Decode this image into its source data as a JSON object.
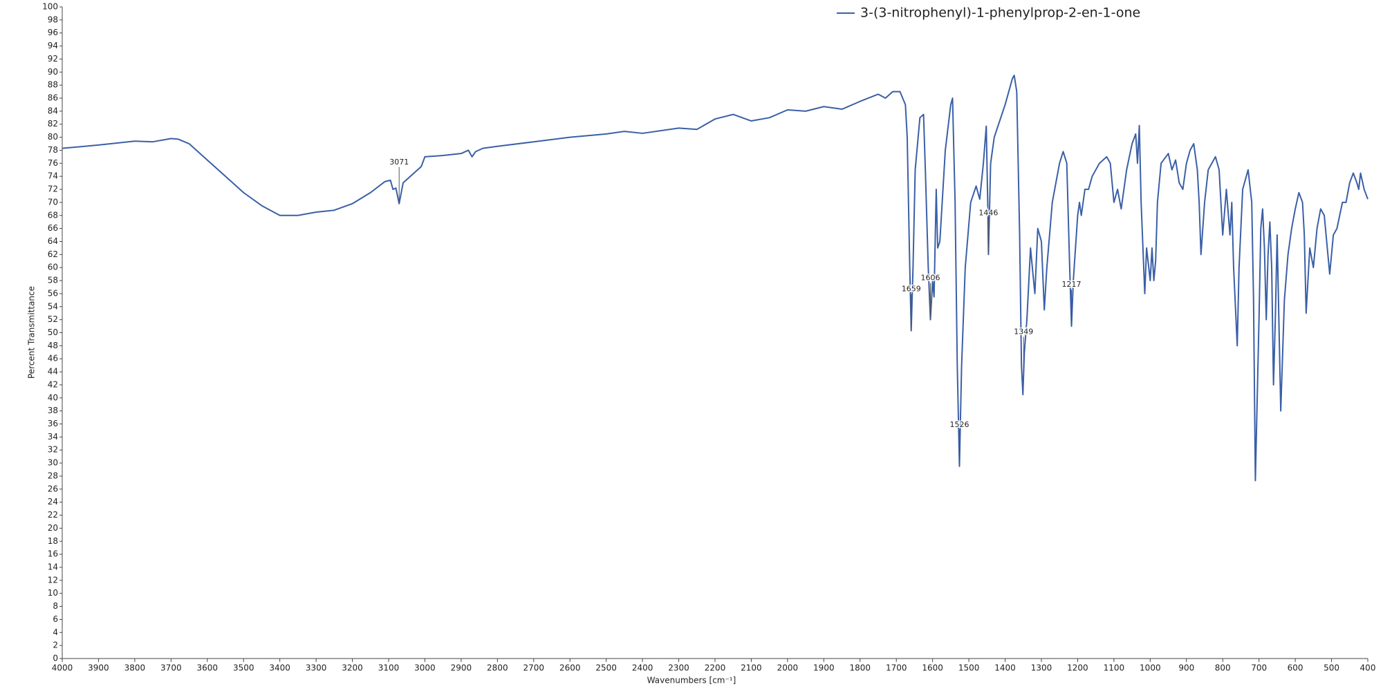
{
  "chart_data": {
    "type": "line",
    "x_label": "Wavenumbers [cm⁻¹]",
    "y_label": "Percent Transmittance",
    "xlim": [
      4000,
      400
    ],
    "ylim": [
      0,
      100
    ],
    "xticks": [
      4000,
      3900,
      3800,
      3700,
      3600,
      3500,
      3400,
      3300,
      3200,
      3100,
      3000,
      2900,
      2800,
      2700,
      2600,
      2500,
      2400,
      2300,
      2200,
      2100,
      2000,
      1900,
      1800,
      1700,
      1600,
      1500,
      1400,
      1300,
      1200,
      1100,
      1000,
      900,
      800,
      700,
      600,
      500,
      400
    ],
    "yticks": [
      0,
      2,
      4,
      6,
      8,
      10,
      12,
      14,
      16,
      18,
      20,
      22,
      24,
      26,
      28,
      30,
      32,
      34,
      36,
      38,
      40,
      42,
      44,
      46,
      48,
      50,
      52,
      54,
      56,
      58,
      60,
      62,
      64,
      66,
      68,
      70,
      72,
      74,
      76,
      78,
      80,
      82,
      84,
      86,
      88,
      90,
      92,
      94,
      96,
      98,
      100
    ],
    "grid": false,
    "legend": "top-right",
    "peak_labels": [
      3071,
      1659,
      1606,
      1526,
      1446,
      1349,
      1217
    ],
    "x": [
      4000,
      3900,
      3800,
      3750,
      3700,
      3680,
      3650,
      3600,
      3550,
      3500,
      3450,
      3400,
      3350,
      3300,
      3250,
      3200,
      3150,
      3110,
      3095,
      3088,
      3080,
      3071,
      3060,
      3040,
      3010,
      3000,
      2950,
      2900,
      2880,
      2870,
      2860,
      2840,
      2800,
      2700,
      2600,
      2500,
      2450,
      2400,
      2300,
      2250,
      2200,
      2150,
      2100,
      2050,
      2000,
      1950,
      1900,
      1850,
      1800,
      1750,
      1730,
      1710,
      1690,
      1675,
      1670,
      1663,
      1659,
      1654,
      1648,
      1635,
      1625,
      1620,
      1612,
      1606,
      1600,
      1596,
      1590,
      1586,
      1580,
      1565,
      1550,
      1545,
      1538,
      1532,
      1526,
      1520,
      1510,
      1495,
      1480,
      1470,
      1460,
      1452,
      1448,
      1446,
      1440,
      1430,
      1400,
      1380,
      1375,
      1368,
      1360,
      1355,
      1351,
      1347,
      1340,
      1330,
      1325,
      1318,
      1310,
      1300,
      1292,
      1285,
      1270,
      1250,
      1240,
      1230,
      1222,
      1217,
      1212,
      1200,
      1195,
      1190,
      1180,
      1170,
      1160,
      1140,
      1120,
      1110,
      1100,
      1090,
      1080,
      1065,
      1050,
      1040,
      1035,
      1030,
      1025,
      1015,
      1010,
      1000,
      995,
      990,
      985,
      980,
      970,
      950,
      940,
      930,
      920,
      910,
      900,
      890,
      880,
      870,
      865,
      860,
      850,
      840,
      820,
      810,
      800,
      790,
      780,
      775,
      770,
      760,
      755,
      745,
      730,
      720,
      715,
      710,
      700,
      695,
      690,
      685,
      680,
      675,
      670,
      665,
      660,
      655,
      650,
      640,
      630,
      620,
      610,
      600,
      590,
      580,
      575,
      570,
      560,
      550,
      540,
      530,
      520,
      510,
      505,
      495,
      485,
      470,
      460,
      450,
      440,
      430,
      425,
      420,
      410,
      400
    ],
    "series": [
      {
        "name": "3-(3-nitrophenyl)-1-phenylprop-2-en-1-one",
        "color": "#3a5fa6",
        "values": [
          78.3,
          78.8,
          79.4,
          79.3,
          79.8,
          79.7,
          79,
          76.5,
          74,
          71.5,
          69.5,
          68,
          68,
          68.5,
          68.8,
          69.8,
          71.5,
          73.2,
          73.4,
          72,
          72.2,
          69.8,
          73,
          74,
          75.5,
          77,
          77.2,
          77.5,
          78,
          77,
          77.8,
          78.3,
          78.6,
          79.3,
          80,
          80.5,
          80.9,
          80.6,
          81.4,
          81.2,
          82.8,
          83.5,
          82.5,
          83,
          84.2,
          84,
          84.7,
          84.3,
          85.5,
          86.6,
          86,
          87,
          87,
          85,
          80,
          60,
          50.3,
          60,
          75,
          83,
          83.5,
          75,
          60,
          52,
          58,
          55.5,
          72,
          63,
          64,
          78,
          85,
          86,
          70,
          45,
          29.5,
          45,
          60,
          70,
          72.5,
          70.5,
          76,
          81.7,
          70,
          62,
          76,
          80,
          85,
          89,
          89.5,
          87,
          65,
          45,
          40.5,
          47,
          52,
          63,
          60,
          56,
          66,
          64,
          53.5,
          60,
          70,
          76,
          77.8,
          76,
          60,
          51,
          58,
          68,
          70,
          68,
          72,
          72,
          74,
          76,
          77,
          76,
          70,
          72,
          69,
          75,
          79,
          80.5,
          76,
          81.8,
          70,
          56,
          63,
          58,
          63,
          58,
          61,
          70,
          76,
          77.5,
          75,
          76.5,
          73,
          72,
          76,
          78,
          79,
          75,
          70,
          62,
          70,
          75,
          77,
          75,
          65,
          72,
          65,
          70,
          60,
          48,
          60,
          72,
          75,
          70,
          55,
          27.3,
          52,
          66,
          69,
          63,
          52,
          62,
          67,
          60,
          42,
          52,
          65,
          38,
          55,
          62,
          66,
          69,
          71.5,
          70,
          65,
          53,
          63,
          60,
          66,
          69,
          68,
          62,
          59,
          65,
          66,
          70,
          70,
          73,
          74.5,
          73,
          72,
          74.5,
          72,
          70.5
        ]
      }
    ]
  }
}
